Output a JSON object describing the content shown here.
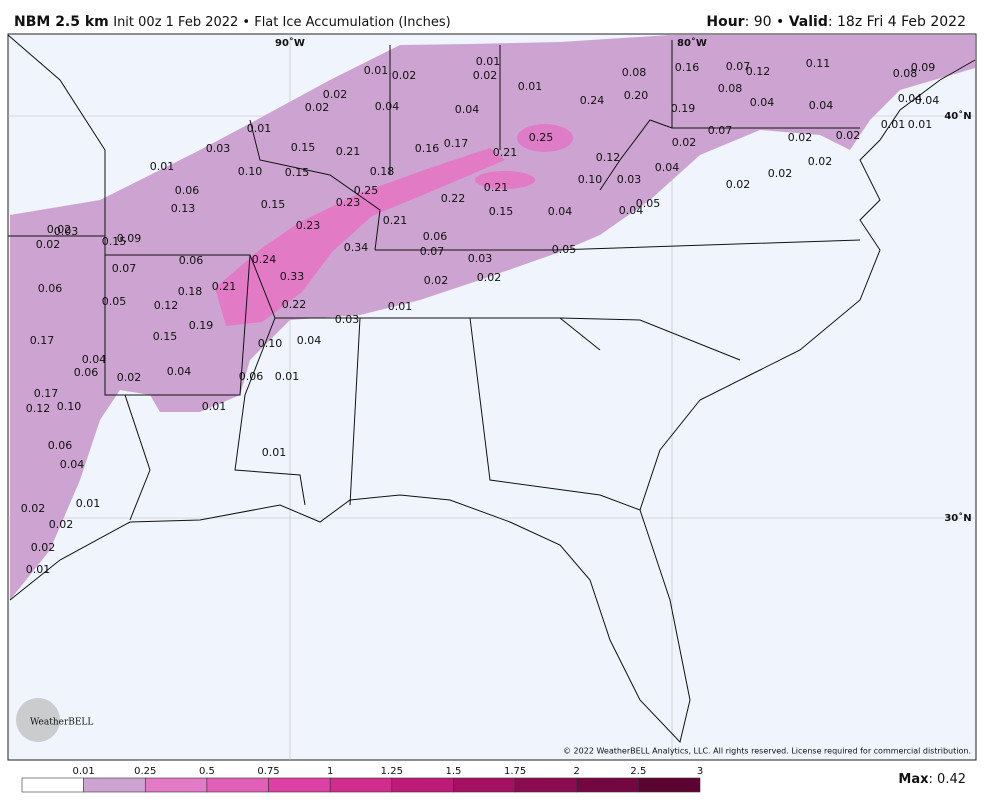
{
  "header": {
    "model": "NBM 2.5 km",
    "description": "Init 00z 1 Feb 2022 • Flat Ice Accumulation (Inches)",
    "hour_label": "Hour",
    "hour": ": 90 • ",
    "valid_label": "Valid",
    "valid": ": 18z Fri 4 Feb 2022"
  },
  "map": {
    "lon_labels": [
      "90˚W",
      "80˚W"
    ],
    "lat_labels": [
      "40˚N",
      "30˚N"
    ],
    "ice_labels": [
      "0.01",
      "0.02",
      "0.01",
      "0.02",
      "0.08",
      "0.16",
      "0.07",
      "0.12",
      "0.11",
      "0.08",
      "0.09",
      "0.02",
      "0.01",
      "0.08",
      "0.04",
      "0.04",
      "0.02",
      "0.04",
      "0.04",
      "0.24",
      "0.20",
      "0.19",
      "0.04",
      "0.04",
      "0.01",
      "0.01",
      "0.01",
      "0.07",
      "0.02",
      "0.02",
      "0.25",
      "0.03",
      "0.15",
      "0.21",
      "0.16",
      "0.17",
      "0.21",
      "0.02",
      "0.12",
      "0.01",
      "0.10",
      "0.15",
      "0.18",
      "0.04",
      "0.02",
      "0.02",
      "0.10",
      "0.03",
      "0.02",
      "0.06",
      "0.25",
      "0.23",
      "0.22",
      "0.21",
      "0.13",
      "0.15",
      "0.15",
      "0.04",
      "0.04",
      "0.05",
      "0.21",
      "0.23",
      "0.02",
      "0.03",
      "0.02",
      "0.15",
      "0.09",
      "0.34",
      "0.06",
      "0.07",
      "0.05",
      "0.06",
      "0.24",
      "0.03",
      "0.07",
      "0.33",
      "0.02",
      "0.02",
      "0.06",
      "0.21",
      "0.18",
      "0.05",
      "0.12",
      "0.22",
      "0.01",
      "0.03",
      "0.19",
      "0.15",
      "0.17",
      "0.10",
      "0.04",
      "0.04",
      "0.06",
      "0.02",
      "0.04",
      "0.06",
      "0.01",
      "0.17",
      "0.12",
      "0.10",
      "0.01",
      "0.06",
      "0.04",
      "0.01",
      "0.01",
      "0.02",
      "0.02",
      "0.02",
      "0.01"
    ],
    "logo": "WeatherBELL",
    "copyright": "© 2022 WeatherBELL Analytics, LLC. All rights reserved. License required for commercial distribution."
  },
  "colorbar": {
    "colors": [
      "#ffffff",
      "#cda4d1",
      "#e27ac6",
      "#e25fb8",
      "#de41a6",
      "#d22c8e",
      "#be1b78",
      "#a51063",
      "#8b0a50",
      "#740641",
      "#5c0331"
    ],
    "ticks": [
      "0.01",
      "0.25",
      "0.5",
      "0.75",
      "1",
      "1.25",
      "1.5",
      "1.75",
      "2",
      "2.5",
      "3"
    ]
  },
  "max": {
    "label": "Max",
    "value": ": 0.42"
  }
}
